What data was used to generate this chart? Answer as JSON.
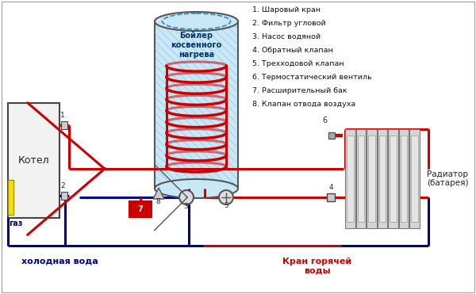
{
  "bg_color": "#ffffff",
  "legend_items": [
    "1. Шаровый кран",
    "2. Фильтр угловой",
    "3. Насос водяной",
    "4. Обратный клапан",
    "5. Трехходовой клапан",
    "6. Термостатический вентиль",
    "7. Расширительный бак",
    "8. Клапан отвода воздуха"
  ],
  "boiler_label": "Бойлер\nкосвенного\nнагрева",
  "kotel_label": "Котел",
  "radiator_label": "Радиатор\n(батарея)",
  "gas_label": "газ",
  "cold_water_label": "холодная вода",
  "hot_tap_label": "Кран горячей\nводы",
  "red_color": "#cc0000",
  "blue_color": "#00008b",
  "yellow_color": "#ffdd00",
  "gray_color": "#888888",
  "light_blue_fill": "#c8e8f8",
  "pipe_lw": 2.2
}
